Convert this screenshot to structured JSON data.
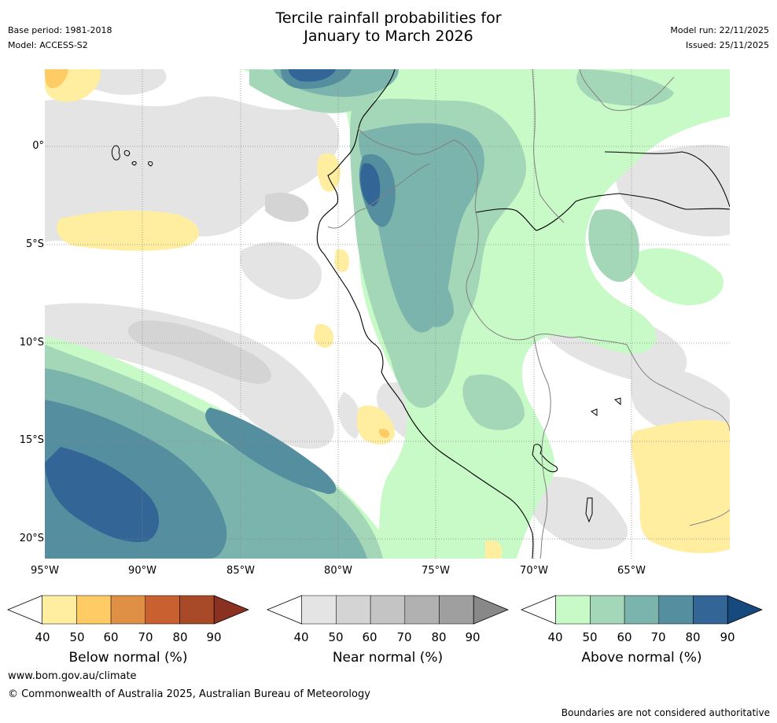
{
  "header": {
    "title_line1": "Tercile rainfall probabilities for",
    "title_line2": "January to March 2026",
    "base_period": "Base period: 1981-2018",
    "model": "Model: ACCESS-S2",
    "model_run": "Model run: 22/11/2025",
    "issued": "Issued: 25/11/2025"
  },
  "map": {
    "lat_labels": [
      "0°",
      "5°S",
      "10°S",
      "15°S",
      "20°S"
    ],
    "lon_labels": [
      "95°W",
      "90°W",
      "85°W",
      "80°W",
      "75°W",
      "70°W",
      "65°W"
    ]
  },
  "legends": [
    {
      "title": "Below normal (%)",
      "ticks": [
        "40",
        "50",
        "60",
        "70",
        "80",
        "90"
      ],
      "colors": [
        "#ffeda0",
        "#fecb64",
        "#e09045",
        "#c9602f",
        "#a84a27",
        "#8a3121"
      ]
    },
    {
      "title": "Near normal (%)",
      "ticks": [
        "40",
        "50",
        "60",
        "70",
        "80",
        "90"
      ],
      "colors": [
        "#e4e4e4",
        "#d4d4d4",
        "#c4c4c4",
        "#b1b1b1",
        "#9f9f9f",
        "#888888"
      ]
    },
    {
      "title": "Above normal (%)",
      "ticks": [
        "40",
        "50",
        "60",
        "70",
        "80",
        "90"
      ],
      "colors": [
        "#c8fac8",
        "#a4d6b8",
        "#7bb3ad",
        "#558e9e",
        "#336596",
        "#164a7e"
      ]
    }
  ],
  "footer": {
    "website": "www.bom.gov.au/climate",
    "copyright": "© Commonwealth of Australia 2025, Australian Bureau of Meteorology",
    "disclaimer": "Boundaries are not considered authoritative"
  }
}
